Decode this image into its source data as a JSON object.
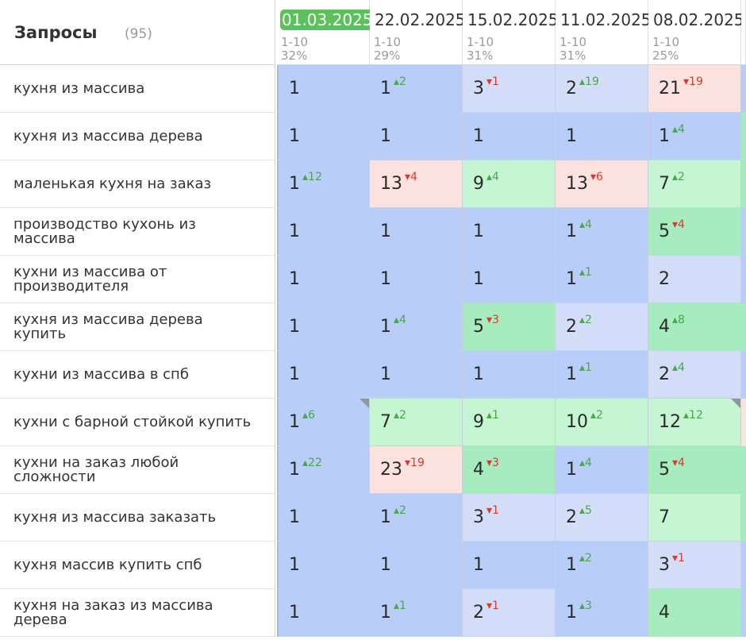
{
  "header": {
    "title": "Запросы",
    "count": "(95)"
  },
  "dates": [
    {
      "date": "01.03.2025",
      "range": "1-10",
      "pct": "32%",
      "current": true
    },
    {
      "date": "22.02.2025",
      "range": "1-10",
      "pct": "29%",
      "current": false
    },
    {
      "date": "15.02.2025",
      "range": "1-10",
      "pct": "31%",
      "current": false
    },
    {
      "date": "11.02.2025",
      "range": "1-10",
      "pct": "31%",
      "current": false
    },
    {
      "date": "08.02.2025",
      "range": "1-10",
      "pct": "25%",
      "current": false
    }
  ],
  "rows": [
    {
      "query": "кухня из массива",
      "cells": [
        {
          "pos": "1",
          "chg": "",
          "dir": "",
          "bg": "blue"
        },
        {
          "pos": "1",
          "chg": "2",
          "dir": "up",
          "bg": "blue"
        },
        {
          "pos": "3",
          "chg": "1",
          "dir": "down",
          "bg": "lblue"
        },
        {
          "pos": "2",
          "chg": "19",
          "dir": "up",
          "bg": "lblue"
        },
        {
          "pos": "21",
          "chg": "19",
          "dir": "down",
          "bg": "pink"
        }
      ],
      "stub": "blue"
    },
    {
      "query": "кухня из массива дерева",
      "cells": [
        {
          "pos": "1",
          "chg": "",
          "dir": "",
          "bg": "blue"
        },
        {
          "pos": "1",
          "chg": "",
          "dir": "",
          "bg": "blue"
        },
        {
          "pos": "1",
          "chg": "",
          "dir": "",
          "bg": "blue"
        },
        {
          "pos": "1",
          "chg": "",
          "dir": "",
          "bg": "blue"
        },
        {
          "pos": "1",
          "chg": "4",
          "dir": "up",
          "bg": "blue"
        }
      ],
      "stub": "green"
    },
    {
      "query": "маленькая кухня на заказ",
      "cells": [
        {
          "pos": "1",
          "chg": "12",
          "dir": "up",
          "bg": "blue"
        },
        {
          "pos": "13",
          "chg": "4",
          "dir": "down",
          "bg": "pink"
        },
        {
          "pos": "9",
          "chg": "4",
          "dir": "up",
          "bg": "lgreen"
        },
        {
          "pos": "13",
          "chg": "6",
          "dir": "down",
          "bg": "pink"
        },
        {
          "pos": "7",
          "chg": "2",
          "dir": "up",
          "bg": "lgreen"
        }
      ],
      "stub": "green"
    },
    {
      "query": "производство кухонь из массива",
      "cells": [
        {
          "pos": "1",
          "chg": "",
          "dir": "",
          "bg": "blue"
        },
        {
          "pos": "1",
          "chg": "",
          "dir": "",
          "bg": "blue"
        },
        {
          "pos": "1",
          "chg": "",
          "dir": "",
          "bg": "blue"
        },
        {
          "pos": "1",
          "chg": "4",
          "dir": "up",
          "bg": "blue"
        },
        {
          "pos": "5",
          "chg": "4",
          "dir": "down",
          "bg": "green"
        }
      ],
      "stub": "blue"
    },
    {
      "query": "кухни из массива от производителя",
      "cells": [
        {
          "pos": "1",
          "chg": "",
          "dir": "",
          "bg": "blue"
        },
        {
          "pos": "1",
          "chg": "",
          "dir": "",
          "bg": "blue"
        },
        {
          "pos": "1",
          "chg": "",
          "dir": "",
          "bg": "blue"
        },
        {
          "pos": "1",
          "chg": "1",
          "dir": "up",
          "bg": "blue"
        },
        {
          "pos": "2",
          "chg": "",
          "dir": "",
          "bg": "lblue"
        }
      ],
      "stub": "blue"
    },
    {
      "query": "кухня из массива дерева купить",
      "cells": [
        {
          "pos": "1",
          "chg": "",
          "dir": "",
          "bg": "blue"
        },
        {
          "pos": "1",
          "chg": "4",
          "dir": "up",
          "bg": "blue"
        },
        {
          "pos": "5",
          "chg": "3",
          "dir": "down",
          "bg": "green"
        },
        {
          "pos": "2",
          "chg": "2",
          "dir": "up",
          "bg": "lblue"
        },
        {
          "pos": "4",
          "chg": "8",
          "dir": "up",
          "bg": "green"
        }
      ],
      "stub": "green"
    },
    {
      "query": "кухни из массива в спб",
      "cells": [
        {
          "pos": "1",
          "chg": "",
          "dir": "",
          "bg": "blue"
        },
        {
          "pos": "1",
          "chg": "",
          "dir": "",
          "bg": "blue"
        },
        {
          "pos": "1",
          "chg": "",
          "dir": "",
          "bg": "blue"
        },
        {
          "pos": "1",
          "chg": "1",
          "dir": "up",
          "bg": "blue"
        },
        {
          "pos": "2",
          "chg": "4",
          "dir": "up",
          "bg": "lblue"
        }
      ],
      "stub": "blue"
    },
    {
      "query": "кухни с барной стойкой купить",
      "cells": [
        {
          "pos": "1",
          "chg": "6",
          "dir": "up",
          "bg": "blue",
          "flag": true
        },
        {
          "pos": "7",
          "chg": "2",
          "dir": "up",
          "bg": "lgreen"
        },
        {
          "pos": "9",
          "chg": "1",
          "dir": "up",
          "bg": "lgreen"
        },
        {
          "pos": "10",
          "chg": "2",
          "dir": "up",
          "bg": "lgreen"
        },
        {
          "pos": "12",
          "chg": "12",
          "dir": "up",
          "bg": "lgreen",
          "flag": true
        }
      ],
      "stub": "pink"
    },
    {
      "query": "кухни на заказ любой сложности",
      "cells": [
        {
          "pos": "1",
          "chg": "22",
          "dir": "up",
          "bg": "blue"
        },
        {
          "pos": "23",
          "chg": "19",
          "dir": "down",
          "bg": "pink"
        },
        {
          "pos": "4",
          "chg": "3",
          "dir": "down",
          "bg": "green"
        },
        {
          "pos": "1",
          "chg": "4",
          "dir": "up",
          "bg": "blue"
        },
        {
          "pos": "5",
          "chg": "4",
          "dir": "down",
          "bg": "green"
        }
      ],
      "stub": "green"
    },
    {
      "query": "кухня из массива заказать",
      "cells": [
        {
          "pos": "1",
          "chg": "",
          "dir": "",
          "bg": "blue"
        },
        {
          "pos": "1",
          "chg": "2",
          "dir": "up",
          "bg": "blue"
        },
        {
          "pos": "3",
          "chg": "1",
          "dir": "down",
          "bg": "lblue"
        },
        {
          "pos": "2",
          "chg": "5",
          "dir": "up",
          "bg": "lblue"
        },
        {
          "pos": "7",
          "chg": "",
          "dir": "",
          "bg": "lgreen"
        }
      ],
      "stub": "green"
    },
    {
      "query": "кухня массив купить спб",
      "cells": [
        {
          "pos": "1",
          "chg": "",
          "dir": "",
          "bg": "blue"
        },
        {
          "pos": "1",
          "chg": "",
          "dir": "",
          "bg": "blue"
        },
        {
          "pos": "1",
          "chg": "",
          "dir": "",
          "bg": "blue"
        },
        {
          "pos": "1",
          "chg": "2",
          "dir": "up",
          "bg": "blue"
        },
        {
          "pos": "3",
          "chg": "1",
          "dir": "down",
          "bg": "lblue"
        }
      ],
      "stub": "blue"
    },
    {
      "query": "кухня на заказ из массива дерева",
      "cells": [
        {
          "pos": "1",
          "chg": "",
          "dir": "",
          "bg": "blue"
        },
        {
          "pos": "1",
          "chg": "1",
          "dir": "up",
          "bg": "blue"
        },
        {
          "pos": "2",
          "chg": "1",
          "dir": "down",
          "bg": "lblue"
        },
        {
          "pos": "1",
          "chg": "3",
          "dir": "up",
          "bg": "blue"
        },
        {
          "pos": "4",
          "chg": "",
          "dir": "",
          "bg": "green"
        }
      ],
      "stub": "blue"
    }
  ],
  "colors": {
    "blue": "#b8cdf7",
    "lblue": "#d3ddf8",
    "green": "#a6ecbf",
    "lgreen": "#c6f5d4",
    "pink": "#fbe2df",
    "current_date": "#5ac15d",
    "up": "#47a84a",
    "down": "#d63b30"
  },
  "icons": {
    "up": "▴",
    "down": "▾",
    "note_flag": "note-flag-icon"
  }
}
